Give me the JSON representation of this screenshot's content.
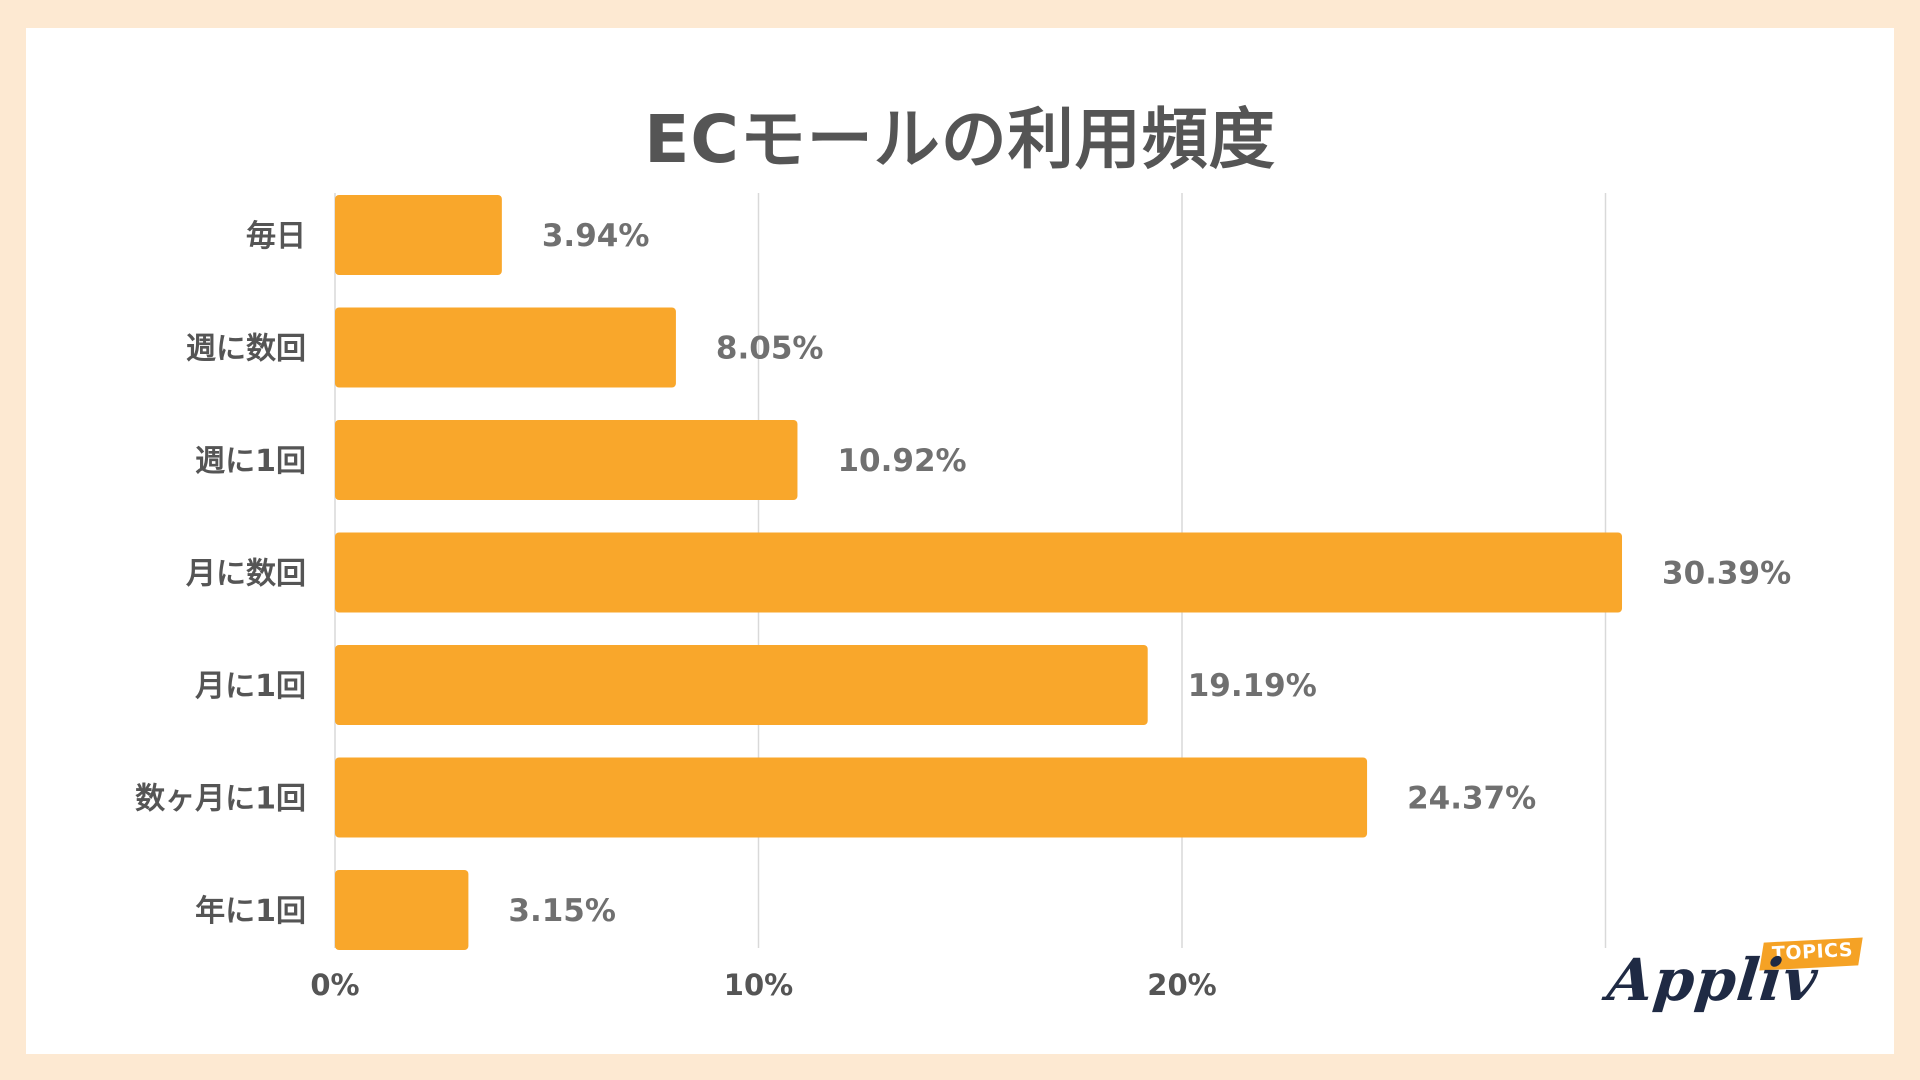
{
  "title": "ECモールの利用頻度",
  "brand": {
    "name": "Appliv",
    "tag": "TOPICS",
    "name_color": "#1f2a44",
    "tag_color": "#f5a225"
  },
  "colors": {
    "background": "#fde9d2",
    "card": "#ffffff",
    "bar": "#f9a72b",
    "text": "#555555",
    "value_text": "#707070",
    "grid": "#d9d9d9"
  },
  "chart_data": {
    "type": "bar",
    "orientation": "horizontal",
    "title": "ECモールの利用頻度",
    "categories": [
      "毎日",
      "週に数回",
      "週に1回",
      "月に数回",
      "月に1回",
      "数ヶ月に1回",
      "年に1回"
    ],
    "values": [
      3.94,
      8.05,
      10.92,
      30.39,
      19.19,
      24.37,
      3.15
    ],
    "value_labels": [
      "3.94%",
      "8.05%",
      "10.92%",
      "30.39%",
      "19.19%",
      "24.37%",
      "3.15%"
    ],
    "x_ticks": [
      0,
      10,
      20,
      30
    ],
    "x_tick_labels": [
      "0%",
      "10%",
      "20%",
      ""
    ],
    "xlim": [
      0,
      30
    ],
    "unit": "%",
    "grid": true,
    "legend": false
  }
}
